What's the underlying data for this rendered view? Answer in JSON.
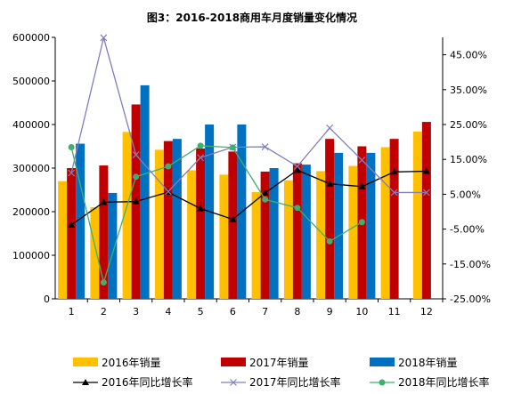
{
  "chart_data": {
    "type": "bar",
    "title": "图3：2016-2018商用车月度销量变化情况",
    "categories": [
      "1",
      "2",
      "3",
      "4",
      "5",
      "6",
      "7",
      "8",
      "9",
      "10",
      "11",
      "12"
    ],
    "ylim": [
      0,
      600000
    ],
    "y_ticks": [
      "0",
      "100000",
      "200000",
      "300000",
      "400000",
      "500000",
      "600000"
    ],
    "y2lim": [
      -25,
      50
    ],
    "y2_ticks": [
      "-25.00%",
      "-15.00%",
      "-5.00%",
      "5.00%",
      "15.00%",
      "25.00%",
      "35.00%",
      "45.00%"
    ],
    "series": [
      {
        "name": "2016年销量",
        "type": "bar",
        "color": "#FFC000",
        "values": [
          270000,
          210000,
          383000,
          342000,
          295000,
          285000,
          245000,
          272000,
          293000,
          305000,
          348000,
          384000
        ]
      },
      {
        "name": "2017年销量",
        "type": "bar",
        "color": "#C00000",
        "values": [
          300000,
          306000,
          446000,
          362000,
          345000,
          338000,
          292000,
          311000,
          367000,
          350000,
          367000,
          406000
        ]
      },
      {
        "name": "2018年销量",
        "type": "bar",
        "color": "#0070C0",
        "values": [
          356000,
          243000,
          490000,
          367000,
          400000,
          400000,
          300000,
          308000,
          335000,
          335000,
          null,
          null
        ]
      },
      {
        "name": "2016年同比增长率",
        "type": "line",
        "axis": "right",
        "color": "#000000",
        "marker": "triangle",
        "values": [
          -3.8,
          2.7,
          2.9,
          5.6,
          0.9,
          -2.2,
          5.4,
          11.9,
          8.0,
          7.2,
          11.4,
          11.6
        ]
      },
      {
        "name": "2017年同比增长率",
        "type": "line",
        "axis": "right",
        "color": "#7F7FBF",
        "marker": "x",
        "values": [
          11.1,
          49.9,
          16.3,
          5.8,
          15.5,
          18.5,
          18.6,
          13.0,
          24.0,
          14.8,
          5.5,
          5.5
        ]
      },
      {
        "name": "2018年同比增长率",
        "type": "line",
        "axis": "right",
        "color": "#3FAF6F",
        "marker": "circle",
        "values": [
          18.5,
          -20.3,
          10.0,
          13.0,
          18.9,
          18.4,
          3.5,
          1.1,
          -8.5,
          -3.0,
          null,
          null
        ]
      }
    ],
    "legend_position": "bottom",
    "grid": false
  }
}
